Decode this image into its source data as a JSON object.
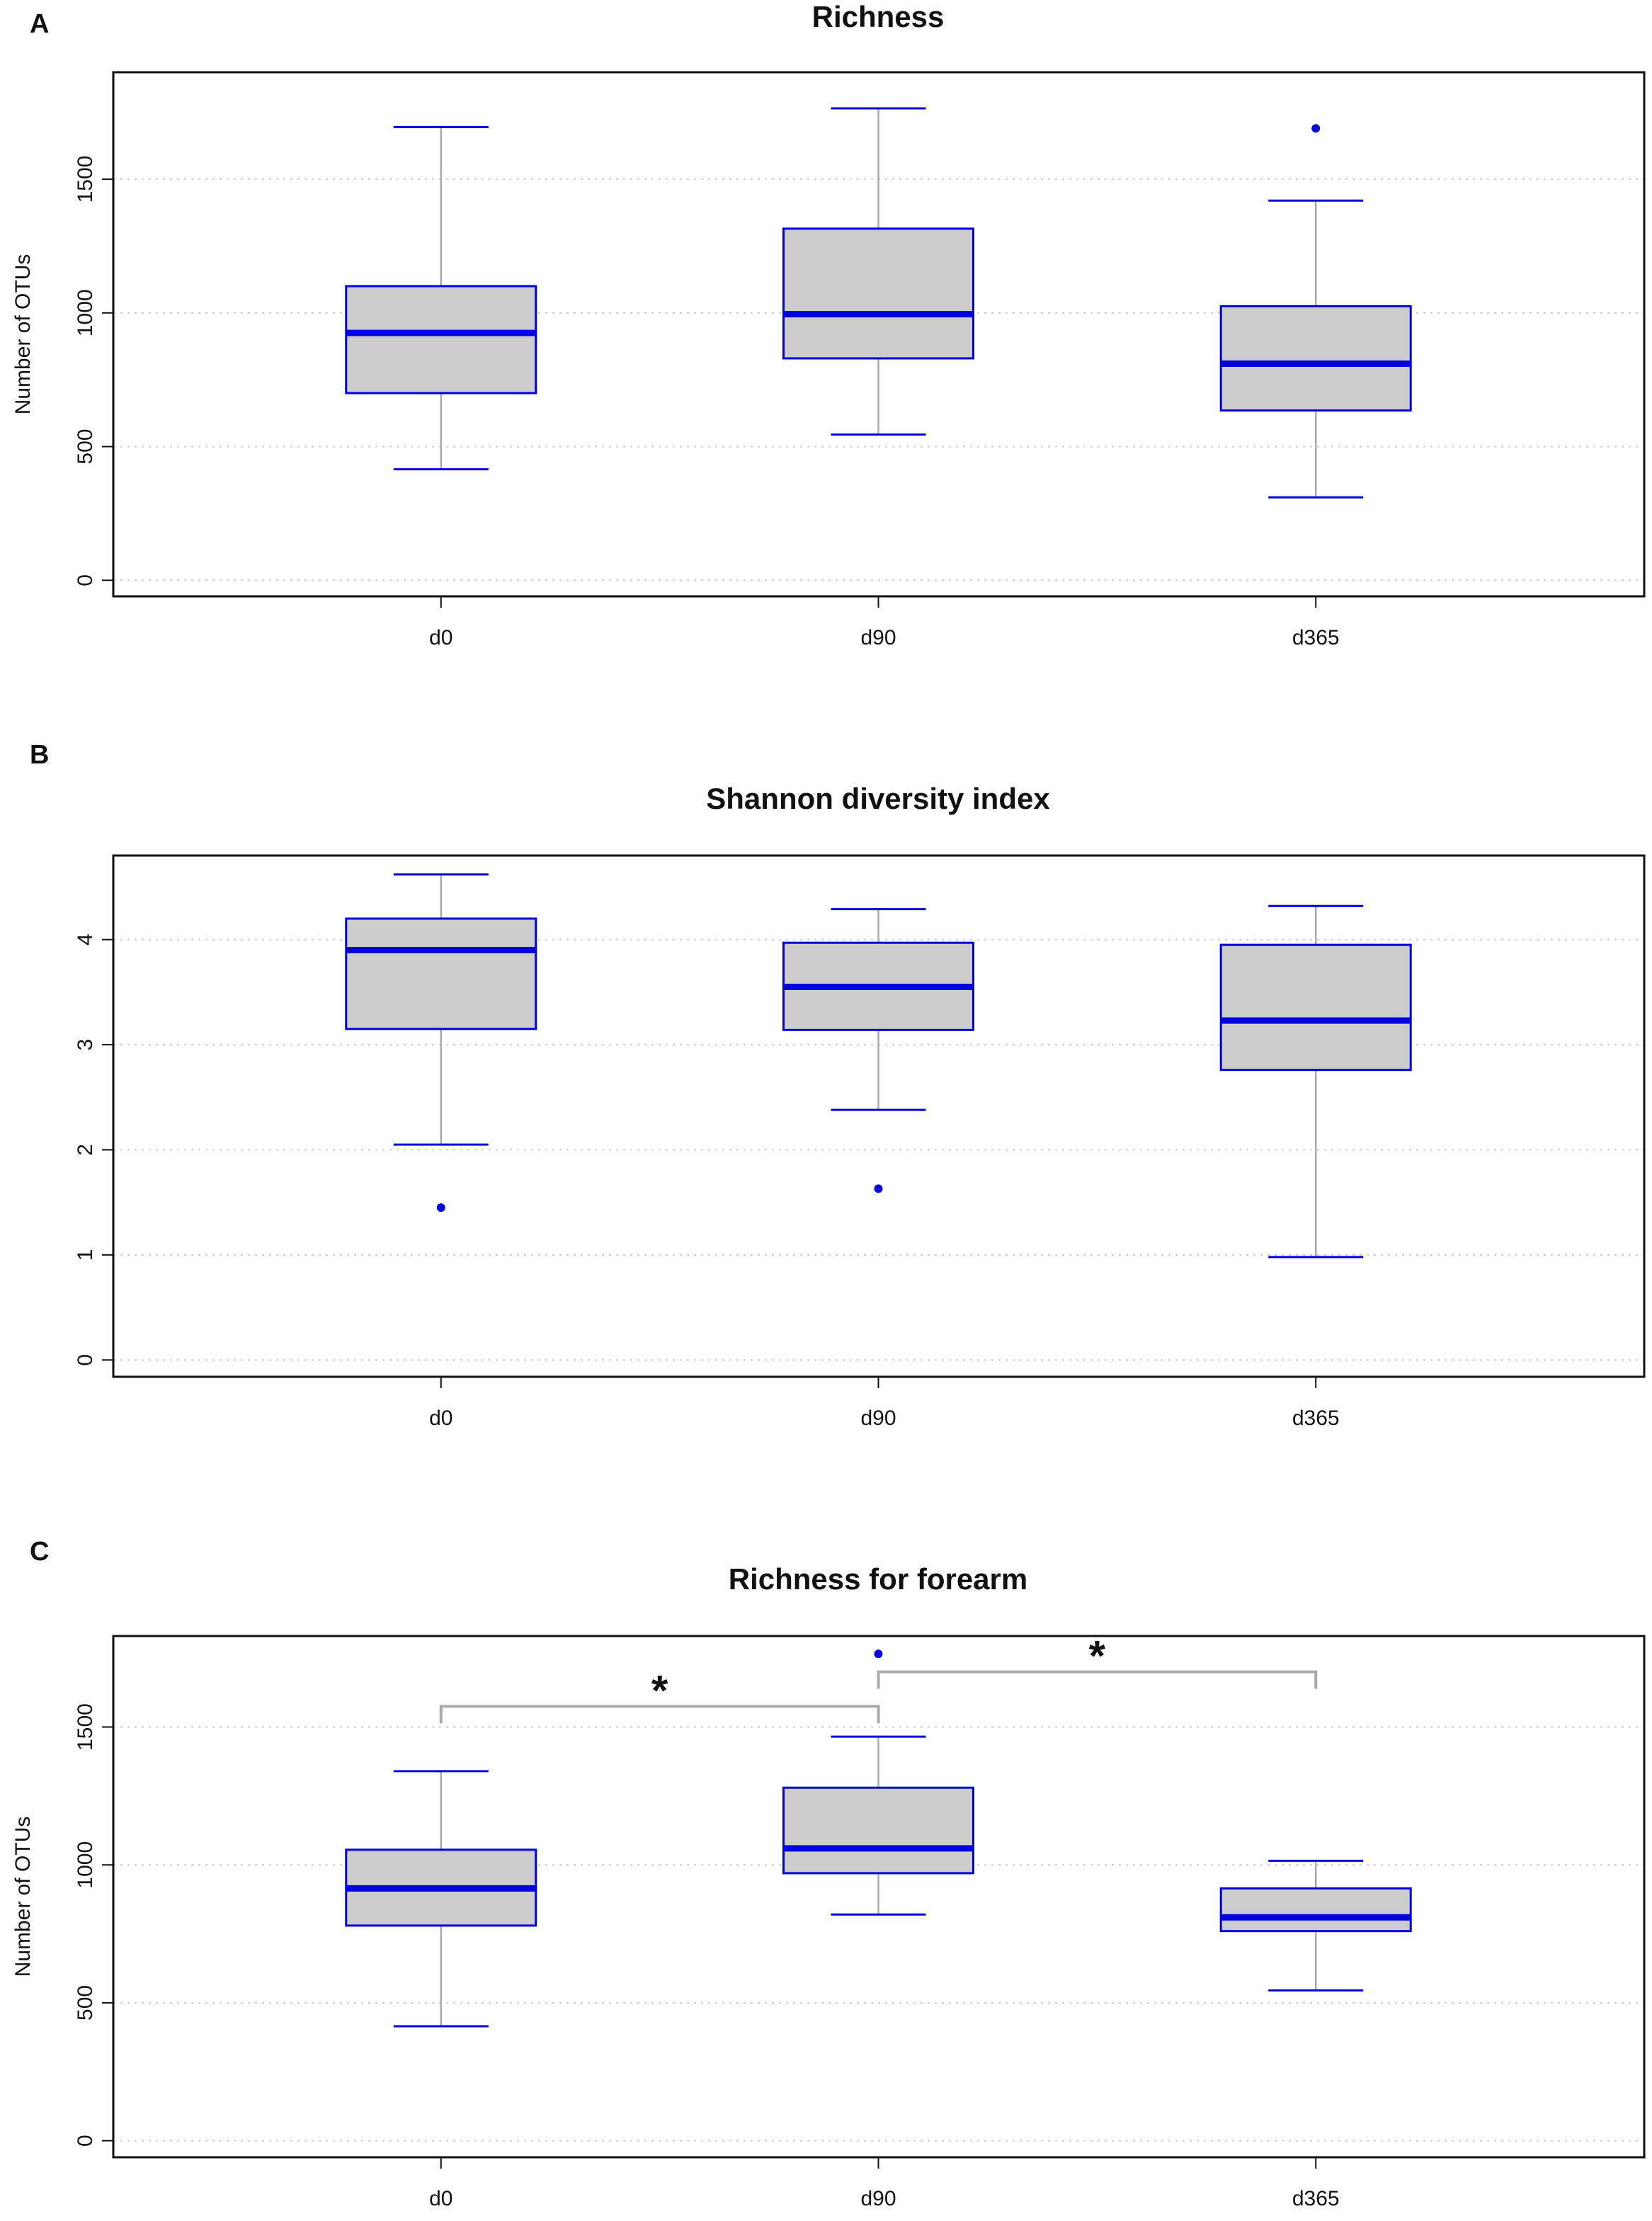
{
  "colors": {
    "box_fill": "#cccccc",
    "box_border": "#0000dd",
    "median": "#0000dd",
    "whisker": "#aaaaaa",
    "cap": "#0000dd",
    "outlier": "#0000dd",
    "grid": "#cccccc",
    "frame": "#111111",
    "bracket": "#aaaaaa"
  },
  "chart_data": [
    {
      "type": "box",
      "panel": "A",
      "title": "Richness",
      "ylabel": "Number of OTUs",
      "xlabel": "",
      "ylim": [
        -60,
        1900
      ],
      "yticks": [
        0,
        500,
        1000,
        1500
      ],
      "grid": true,
      "categories": [
        "d0",
        "d90",
        "d365"
      ],
      "boxes": [
        {
          "category": "d0",
          "whisker_low": 415,
          "q1": 700,
          "median": 925,
          "q3": 1100,
          "whisker_high": 1695,
          "outliers": []
        },
        {
          "category": "d90",
          "whisker_low": 545,
          "q1": 830,
          "median": 995,
          "q3": 1315,
          "whisker_high": 1765,
          "outliers": []
        },
        {
          "category": "d365",
          "whisker_low": 310,
          "q1": 635,
          "median": 810,
          "q3": 1025,
          "whisker_high": 1420,
          "outliers": [
            1690
          ]
        }
      ],
      "significance": []
    },
    {
      "type": "box",
      "panel": "B",
      "title": "Shannon diversity index",
      "ylabel": "",
      "xlabel": "",
      "ylim": [
        -0.16,
        4.8
      ],
      "yticks": [
        0,
        1,
        2,
        3,
        4
      ],
      "grid": true,
      "categories": [
        "d0",
        "d90",
        "d365"
      ],
      "boxes": [
        {
          "category": "d0",
          "whisker_low": 2.05,
          "q1": 3.15,
          "median": 3.9,
          "q3": 4.2,
          "whisker_high": 4.62,
          "outliers": [
            1.45
          ]
        },
        {
          "category": "d90",
          "whisker_low": 2.38,
          "q1": 3.14,
          "median": 3.55,
          "q3": 3.97,
          "whisker_high": 4.29,
          "outliers": [
            1.63
          ]
        },
        {
          "category": "d365",
          "whisker_low": 0.98,
          "q1": 2.76,
          "median": 3.23,
          "q3": 3.95,
          "whisker_high": 4.32,
          "outliers": []
        }
      ],
      "significance": []
    },
    {
      "type": "box",
      "panel": "C",
      "title": "Richness for forearm",
      "ylabel": "Number of OTUs",
      "xlabel": "",
      "ylim": [
        -60,
        1830
      ],
      "yticks": [
        0,
        500,
        1000,
        1500
      ],
      "grid": true,
      "categories": [
        "d0",
        "d90",
        "d365"
      ],
      "boxes": [
        {
          "category": "d0",
          "whisker_low": 415,
          "q1": 780,
          "median": 915,
          "q3": 1055,
          "whisker_high": 1340,
          "outliers": []
        },
        {
          "category": "d90",
          "whisker_low": 820,
          "q1": 970,
          "median": 1060,
          "q3": 1280,
          "whisker_high": 1465,
          "outliers": [
            1765
          ]
        },
        {
          "category": "d365",
          "whisker_low": 545,
          "q1": 760,
          "median": 810,
          "q3": 915,
          "whisker_high": 1015,
          "outliers": []
        }
      ],
      "significance": [
        {
          "from": "d0",
          "to": "d90",
          "label": "*",
          "level": 1575
        },
        {
          "from": "d90",
          "to": "d365",
          "label": "*",
          "level": 1700
        }
      ]
    }
  ]
}
